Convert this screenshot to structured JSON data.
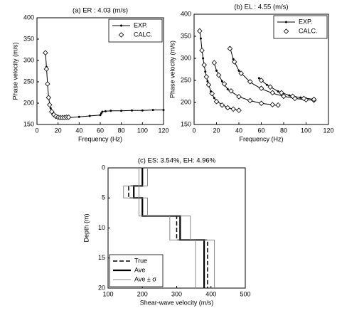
{
  "chart_data": [
    {
      "type": "line",
      "title": "(a) ER : 4.03 (m/s)",
      "x_label": "Frequency (Hz)",
      "y_label": "Phase velocity (m/s)",
      "xlim": [
        0,
        120
      ],
      "ylim": [
        150,
        400
      ],
      "xticks": [
        0,
        20,
        40,
        60,
        80,
        100,
        120
      ],
      "yticks": [
        150,
        200,
        250,
        300,
        350,
        400
      ],
      "legend": "upper right",
      "series": [
        {
          "name": "EXP.",
          "color": "#000000",
          "marker": "dot",
          "line": true,
          "x": [
            8,
            9,
            10,
            11,
            12,
            13,
            14,
            16,
            18,
            20,
            25,
            30,
            40,
            50,
            60,
            61,
            62,
            65,
            70,
            80,
            90,
            100,
            110,
            120
          ],
          "values": [
            320,
            285,
            245,
            215,
            198,
            188,
            180,
            172,
            168,
            166,
            165,
            166,
            168,
            170,
            172,
            176,
            180,
            181,
            182,
            182,
            183,
            183,
            184,
            184
          ]
        },
        {
          "name": "CALC.",
          "color": "#000000",
          "marker": "diamond",
          "line": false,
          "x": [
            8,
            9,
            10,
            11,
            12,
            14,
            16,
            18,
            20,
            22,
            24,
            26,
            28,
            30
          ],
          "values": [
            318,
            280,
            245,
            213,
            196,
            180,
            173,
            169,
            167,
            166,
            166,
            166,
            167,
            167
          ]
        }
      ]
    },
    {
      "type": "line",
      "title": "(b) EL : 4.55 (m/s)",
      "x_label": "Frequency (Hz)",
      "y_label": "Phase velocity (m/s)",
      "xlim": [
        0,
        120
      ],
      "ylim": [
        150,
        400
      ],
      "xticks": [
        0,
        20,
        40,
        60,
        80,
        100,
        120
      ],
      "yticks": [
        150,
        200,
        250,
        300,
        350,
        400
      ],
      "legend": "upper right",
      "series": [
        {
          "name": "EXP.",
          "color": "#000000",
          "marker": "dot",
          "line": true,
          "x": [
            5,
            6,
            7,
            8,
            10,
            12,
            15,
            18,
            20,
            25,
            30,
            35,
            40,
            null,
            18,
            20,
            25,
            30,
            40,
            50,
            60,
            75,
            null,
            32,
            35,
            40,
            50,
            60,
            70,
            80,
            90,
            100,
            107,
            null,
            58,
            65,
            75,
            85,
            95,
            107
          ],
          "values": [
            365,
            345,
            320,
            300,
            270,
            248,
            225,
            210,
            203,
            195,
            188,
            185,
            182,
            null,
            290,
            272,
            248,
            230,
            213,
            204,
            198,
            193,
            null,
            325,
            298,
            272,
            246,
            231,
            221,
            214,
            209,
            206,
            205,
            null,
            255,
            240,
            225,
            216,
            211,
            207
          ]
        },
        {
          "name": "CALC.",
          "color": "#000000",
          "marker": "diamond",
          "line": false,
          "x": [
            5,
            7,
            9,
            11,
            13,
            16,
            20,
            25,
            30,
            35,
            40,
            18,
            22,
            27,
            33,
            40,
            50,
            60,
            70,
            75,
            32,
            36,
            42,
            50,
            60,
            70,
            80,
            90,
            100,
            107,
            60,
            68,
            78,
            88,
            98,
            107
          ],
          "values": [
            362,
            318,
            285,
            258,
            240,
            220,
            202,
            194,
            188,
            185,
            182,
            290,
            262,
            242,
            226,
            213,
            204,
            198,
            195,
            194,
            322,
            292,
            266,
            247,
            232,
            222,
            214,
            209,
            206,
            205,
            250,
            235,
            222,
            214,
            209,
            207
          ]
        }
      ]
    },
    {
      "type": "step",
      "title": "(c) ES: 3.54%, EH: 4.96%",
      "x_label": "Shear-wave velocity (m/s)",
      "y_label": "Depth (m)",
      "xlim": [
        100,
        500
      ],
      "ylim": [
        0,
        20
      ],
      "y_inverted": true,
      "xticks": [
        100,
        200,
        300,
        400,
        500
      ],
      "yticks": [
        0,
        5,
        10,
        15,
        20
      ],
      "legend": "lower left",
      "series": [
        {
          "name": "True",
          "color": "#000000",
          "style": "dash",
          "width": 1.5,
          "depth": [
            0,
            3,
            3,
            5,
            5,
            8,
            8,
            12,
            12,
            20
          ],
          "values": [
            200,
            200,
            160,
            160,
            200,
            200,
            300,
            300,
            390,
            390
          ]
        },
        {
          "name": "Ave",
          "color": "#000000",
          "style": "solid",
          "width": 2.2,
          "depth": [
            0,
            3,
            3,
            5,
            5,
            8,
            8,
            12,
            12,
            20
          ],
          "values": [
            200,
            200,
            175,
            175,
            200,
            200,
            310,
            310,
            380,
            380
          ]
        },
        {
          "name": "Ave ± σ",
          "color": "#888888",
          "style": "solid",
          "width": 1,
          "depth": [
            0,
            3,
            3,
            5,
            5,
            8,
            8,
            12,
            12,
            20
          ],
          "lower": [
            190,
            190,
            145,
            145,
            190,
            190,
            280,
            280,
            355,
            355
          ],
          "upper": [
            215,
            215,
            190,
            190,
            215,
            215,
            340,
            340,
            410,
            410
          ]
        }
      ]
    }
  ]
}
